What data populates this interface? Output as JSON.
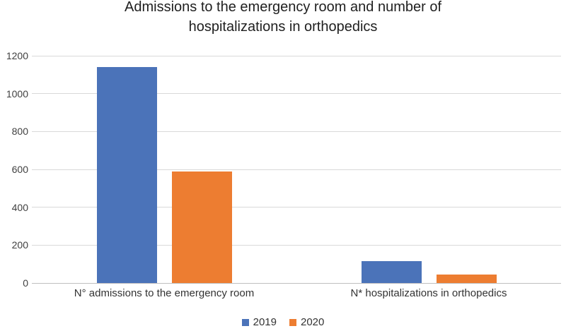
{
  "chart_data": {
    "type": "bar",
    "title": "Admissions to the emergency room and number of hospitalizations in orthopedics",
    "categories": [
      "N° admissions to the emergency room",
      "N* hospitalizations in orthopedics"
    ],
    "series": [
      {
        "name": "2019",
        "color": "#4B73B9",
        "values": [
          1140,
          115
        ]
      },
      {
        "name": "2020",
        "color": "#ED7D31",
        "values": [
          590,
          45
        ]
      }
    ],
    "xlabel": "",
    "ylabel": "",
    "ylim": [
      0,
      1200
    ],
    "yticks": [
      0,
      200,
      400,
      600,
      800,
      1000,
      1200
    ],
    "grid": true,
    "legend_position": "bottom"
  },
  "colors": {
    "gridline": "#D9D9D9",
    "baseline": "#BFBFBF",
    "tick_text": "#404040",
    "label_text": "#333333",
    "title_text": "#1F1F1F",
    "background": "#FFFFFF"
  }
}
